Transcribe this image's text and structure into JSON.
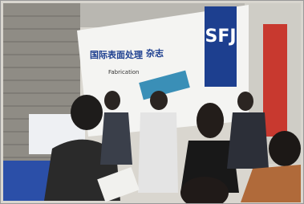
{
  "scene": {
    "banner": {
      "logo": "SFJ",
      "title": "国际表面处理",
      "title_suffix": "杂志",
      "subtitle": "Fabrication"
    }
  }
}
